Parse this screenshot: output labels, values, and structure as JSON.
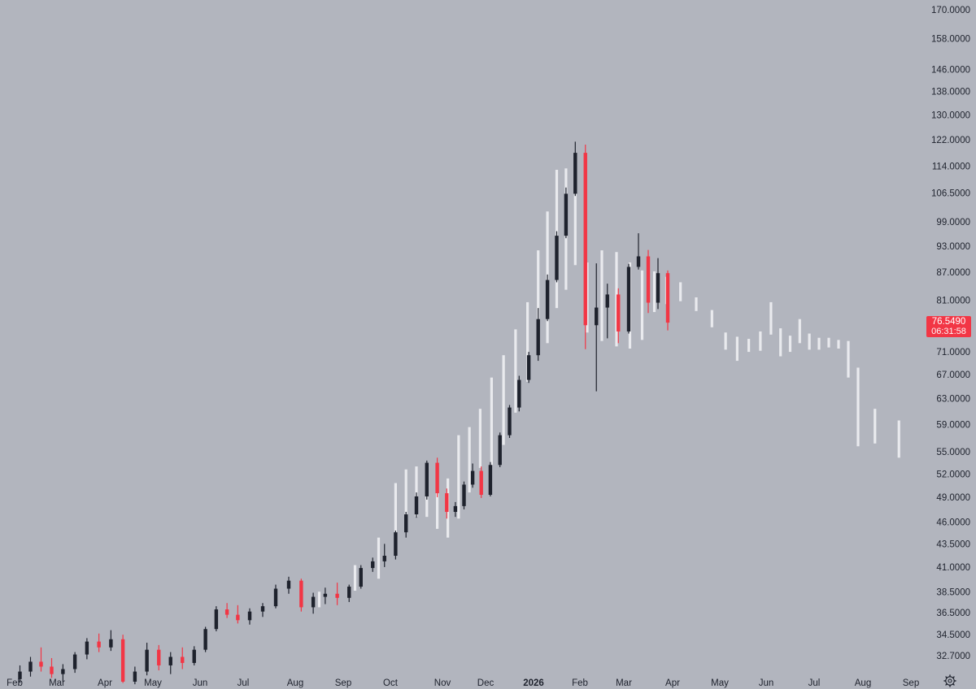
{
  "chart_data": {
    "type": "candlestick",
    "x_axis_labels": [
      "Feb",
      "Mar",
      "Apr",
      "May",
      "Jun",
      "Jul",
      "Aug",
      "Sep",
      "Oct",
      "Nov",
      "Dec",
      "2026",
      "Feb",
      "Mar",
      "Apr",
      "May",
      "Jun",
      "Jul",
      "Aug",
      "Sep"
    ],
    "y_axis_labels": [
      "170.0000",
      "158.0000",
      "146.0000",
      "138.0000",
      "130.0000",
      "122.0000",
      "114.0000",
      "106.5000",
      "99.0000",
      "93.0000",
      "87.0000",
      "81.0000",
      "71.0000",
      "67.0000",
      "63.0000",
      "59.0000",
      "55.0000",
      "52.0000",
      "49.0000",
      "46.0000",
      "43.5000",
      "41.0000",
      "38.5000",
      "36.5000",
      "34.5000",
      "32.7000"
    ],
    "y_scale": "log",
    "colors": {
      "background": "#b2b5be",
      "up": "#1e222d",
      "down": "#f23645",
      "projection": "#e9eaee",
      "axis_text": "#1e222d",
      "last_price_badge": "#f23645"
    },
    "series": [
      {
        "kind": "ohlc",
        "points": [
          {
            "x": "Feb",
            "o": 30.8,
            "h": 31.9,
            "l": 30.5,
            "c": 31.4
          },
          {
            "x": "Feb",
            "o": 31.4,
            "h": 32.6,
            "l": 31.0,
            "c": 32.2
          },
          {
            "x": "Feb",
            "o": 32.2,
            "h": 33.4,
            "l": 31.4,
            "c": 31.8
          },
          {
            "x": "Feb",
            "o": 31.8,
            "h": 32.5,
            "l": 30.9,
            "c": 31.2
          },
          {
            "x": "Mar",
            "o": 31.2,
            "h": 32.0,
            "l": 30.6,
            "c": 31.6
          },
          {
            "x": "Mar",
            "o": 31.6,
            "h": 33.0,
            "l": 31.3,
            "c": 32.8
          },
          {
            "x": "Mar",
            "o": 32.8,
            "h": 34.2,
            "l": 32.4,
            "c": 33.9
          },
          {
            "x": "Mar",
            "o": 33.9,
            "h": 34.6,
            "l": 33.0,
            "c": 33.4
          },
          {
            "x": "Apr",
            "o": 33.4,
            "h": 34.9,
            "l": 33.1,
            "c": 34.1
          },
          {
            "x": "Apr",
            "o": 34.1,
            "h": 34.5,
            "l": 30.5,
            "c": 30.6
          },
          {
            "x": "Apr",
            "o": 30.6,
            "h": 31.8,
            "l": 30.4,
            "c": 31.4
          },
          {
            "x": "Apr",
            "o": 31.4,
            "h": 33.8,
            "l": 31.1,
            "c": 33.2
          },
          {
            "x": "May",
            "o": 33.2,
            "h": 33.6,
            "l": 31.5,
            "c": 31.9
          },
          {
            "x": "May",
            "o": 31.9,
            "h": 33.0,
            "l": 31.2,
            "c": 32.6
          },
          {
            "x": "May",
            "o": 32.6,
            "h": 33.4,
            "l": 31.6,
            "c": 32.1
          },
          {
            "x": "May",
            "o": 32.1,
            "h": 33.5,
            "l": 31.9,
            "c": 33.2
          },
          {
            "x": "Jun",
            "o": 33.2,
            "h": 35.2,
            "l": 33.0,
            "c": 35.0
          },
          {
            "x": "Jun",
            "o": 35.0,
            "h": 37.1,
            "l": 34.8,
            "c": 36.8
          },
          {
            "x": "Jun",
            "o": 36.8,
            "h": 37.4,
            "l": 36.0,
            "c": 36.3
          },
          {
            "x": "Jun",
            "o": 36.3,
            "h": 37.2,
            "l": 35.5,
            "c": 35.8
          },
          {
            "x": "Jul",
            "o": 35.8,
            "h": 36.9,
            "l": 35.4,
            "c": 36.6
          },
          {
            "x": "Jul",
            "o": 36.6,
            "h": 37.4,
            "l": 36.1,
            "c": 37.1
          },
          {
            "x": "Jul",
            "o": 37.1,
            "h": 39.2,
            "l": 36.9,
            "c": 38.8
          },
          {
            "x": "Jul",
            "o": 38.8,
            "h": 40.0,
            "l": 38.3,
            "c": 39.6
          },
          {
            "x": "Aug",
            "o": 39.6,
            "h": 39.8,
            "l": 36.6,
            "c": 37.0
          },
          {
            "x": "Aug",
            "o": 37.0,
            "h": 38.4,
            "l": 36.4,
            "c": 38.0
          },
          {
            "x": "Aug",
            "o": 38.0,
            "h": 38.9,
            "l": 37.3,
            "c": 38.3
          },
          {
            "x": "Aug",
            "o": 38.3,
            "h": 39.4,
            "l": 37.2,
            "c": 37.9
          },
          {
            "x": "Sep",
            "o": 37.9,
            "h": 39.2,
            "l": 37.5,
            "c": 39.0
          },
          {
            "x": "Sep",
            "o": 39.0,
            "h": 41.2,
            "l": 38.8,
            "c": 40.9
          },
          {
            "x": "Sep",
            "o": 40.9,
            "h": 42.0,
            "l": 40.5,
            "c": 41.6
          },
          {
            "x": "Sep",
            "o": 41.6,
            "h": 43.5,
            "l": 41.0,
            "c": 42.2
          },
          {
            "x": "Oct",
            "o": 42.2,
            "h": 45.0,
            "l": 41.8,
            "c": 44.8
          },
          {
            "x": "Oct",
            "o": 44.8,
            "h": 47.2,
            "l": 44.2,
            "c": 46.9
          },
          {
            "x": "Oct",
            "o": 46.9,
            "h": 49.6,
            "l": 46.5,
            "c": 49.1
          },
          {
            "x": "Oct",
            "o": 49.1,
            "h": 53.8,
            "l": 48.7,
            "c": 53.5
          },
          {
            "x": "Oct",
            "o": 53.5,
            "h": 54.2,
            "l": 49.0,
            "c": 49.5
          },
          {
            "x": "Nov",
            "o": 49.5,
            "h": 50.1,
            "l": 46.4,
            "c": 47.2
          },
          {
            "x": "Nov",
            "o": 47.2,
            "h": 48.4,
            "l": 46.6,
            "c": 47.9
          },
          {
            "x": "Nov",
            "o": 47.9,
            "h": 51.0,
            "l": 47.5,
            "c": 50.6
          },
          {
            "x": "Nov",
            "o": 50.6,
            "h": 53.4,
            "l": 50.2,
            "c": 52.4
          },
          {
            "x": "Nov",
            "o": 52.4,
            "h": 53.0,
            "l": 48.9,
            "c": 49.3
          },
          {
            "x": "Dec",
            "o": 49.3,
            "h": 53.6,
            "l": 49.1,
            "c": 53.2
          },
          {
            "x": "Dec",
            "o": 53.2,
            "h": 57.8,
            "l": 52.9,
            "c": 57.4
          },
          {
            "x": "Dec",
            "o": 57.4,
            "h": 62.0,
            "l": 57.0,
            "c": 61.6
          },
          {
            "x": "Dec",
            "o": 61.6,
            "h": 66.8,
            "l": 61.0,
            "c": 66.1
          },
          {
            "x": "Dec",
            "o": 66.1,
            "h": 71.0,
            "l": 65.6,
            "c": 70.4
          },
          {
            "x": "2026",
            "o": 70.4,
            "h": 79.4,
            "l": 69.4,
            "c": 77.2
          },
          {
            "x": "2026",
            "o": 77.2,
            "h": 86.5,
            "l": 76.8,
            "c": 85.3
          },
          {
            "x": "2026",
            "o": 85.3,
            "h": 96.6,
            "l": 84.8,
            "c": 95.5
          },
          {
            "x": "2026",
            "o": 95.5,
            "h": 108.0,
            "l": 94.9,
            "c": 106.3
          },
          {
            "x": "2026",
            "o": 106.3,
            "h": 121.4,
            "l": 105.7,
            "c": 118.0
          },
          {
            "x": "Feb",
            "o": 118.0,
            "h": 120.5,
            "l": 71.5,
            "c": 76.0
          },
          {
            "x": "Feb",
            "o": 76.0,
            "h": 89.0,
            "l": 64.2,
            "c": 79.5
          },
          {
            "x": "Feb",
            "o": 79.5,
            "h": 84.5,
            "l": 73.5,
            "c": 82.2
          },
          {
            "x": "Feb",
            "o": 82.2,
            "h": 83.5,
            "l": 72.6,
            "c": 74.8
          },
          {
            "x": "Mar",
            "o": 74.8,
            "h": 88.9,
            "l": 74.4,
            "c": 88.2
          },
          {
            "x": "Mar",
            "o": 88.2,
            "h": 96.1,
            "l": 87.6,
            "c": 90.6
          },
          {
            "x": "Mar",
            "o": 90.6,
            "h": 92.1,
            "l": 78.4,
            "c": 80.5
          },
          {
            "x": "Mar",
            "o": 80.5,
            "h": 90.2,
            "l": 79.2,
            "c": 86.8
          },
          {
            "x": "Mar",
            "o": 86.8,
            "h": 87.4,
            "l": 75.0,
            "c": 76.5
          }
        ]
      },
      {
        "kind": "projection",
        "points": [
          {
            "x": "Aug",
            "l": 37.0,
            "h": 38.5
          },
          {
            "x": "Sep",
            "l": 38.6,
            "h": 41.2
          },
          {
            "x": "Sep",
            "l": 39.8,
            "h": 44.2
          },
          {
            "x": "Oct",
            "l": 43.8,
            "h": 50.8
          },
          {
            "x": "Oct",
            "l": 46.2,
            "h": 52.6
          },
          {
            "x": "Oct",
            "l": 46.6,
            "h": 53.0
          },
          {
            "x": "Oct",
            "l": 46.6,
            "h": 52.8
          },
          {
            "x": "Oct",
            "l": 45.2,
            "h": 51.8
          },
          {
            "x": "Nov",
            "l": 44.2,
            "h": 51.4
          },
          {
            "x": "Nov",
            "l": 46.4,
            "h": 57.4
          },
          {
            "x": "Nov",
            "l": 49.6,
            "h": 58.6
          },
          {
            "x": "Nov",
            "l": 52.8,
            "h": 61.4
          },
          {
            "x": "Dec",
            "l": 53.2,
            "h": 66.5
          },
          {
            "x": "Dec",
            "l": 56.0,
            "h": 70.4
          },
          {
            "x": "Dec",
            "l": 60.8,
            "h": 75.2
          },
          {
            "x": "Dec",
            "l": 65.8,
            "h": 80.6
          },
          {
            "x": "2026",
            "l": 70.6,
            "h": 92.0
          },
          {
            "x": "2026",
            "l": 72.6,
            "h": 101.6
          },
          {
            "x": "2026",
            "l": 79.4,
            "h": 113.0
          },
          {
            "x": "2026",
            "l": 83.2,
            "h": 113.4
          },
          {
            "x": "2026",
            "l": 88.6,
            "h": 111.0
          },
          {
            "x": "Feb",
            "l": 74.6,
            "h": 89.2
          },
          {
            "x": "Feb",
            "l": 73.0,
            "h": 92.0
          },
          {
            "x": "Feb",
            "l": 72.0,
            "h": 91.6
          },
          {
            "x": "Mar",
            "l": 71.6,
            "h": 89.2
          },
          {
            "x": "Mar",
            "l": 73.2,
            "h": 87.4
          },
          {
            "x": "Mar",
            "l": 78.6,
            "h": 87.2
          },
          {
            "x": "Mar",
            "l": 80.2,
            "h": 86.0
          },
          {
            "x": "Apr",
            "l": 80.8,
            "h": 84.8
          },
          {
            "x": "Apr",
            "l": 78.8,
            "h": 81.6
          },
          {
            "x": "Apr",
            "l": 75.6,
            "h": 79.0
          },
          {
            "x": "May",
            "l": 71.4,
            "h": 74.6
          },
          {
            "x": "May",
            "l": 69.4,
            "h": 73.8
          },
          {
            "x": "May",
            "l": 71.0,
            "h": 73.4
          },
          {
            "x": "May",
            "l": 71.2,
            "h": 74.8
          },
          {
            "x": "Jun",
            "l": 74.2,
            "h": 80.6
          },
          {
            "x": "Jun",
            "l": 70.2,
            "h": 75.4
          },
          {
            "x": "Jun",
            "l": 71.0,
            "h": 74.0
          },
          {
            "x": "Jun",
            "l": 72.6,
            "h": 77.2
          },
          {
            "x": "Jun",
            "l": 71.4,
            "h": 74.4
          },
          {
            "x": "Jul",
            "l": 71.4,
            "h": 73.6
          },
          {
            "x": "Jul",
            "l": 71.8,
            "h": 73.6
          },
          {
            "x": "Jul",
            "l": 71.6,
            "h": 73.2
          },
          {
            "x": "Jul",
            "l": 66.5,
            "h": 73.0
          },
          {
            "x": "Jul",
            "l": 55.8,
            "h": 68.2
          },
          {
            "x": "Aug",
            "l": 56.2,
            "h": 61.4
          },
          {
            "x": "Aug",
            "l": 54.2,
            "h": 59.6
          }
        ]
      }
    ],
    "last_price": {
      "value": "76.5490",
      "countdown": "06:31:58"
    },
    "grid": false,
    "legend": "none"
  }
}
